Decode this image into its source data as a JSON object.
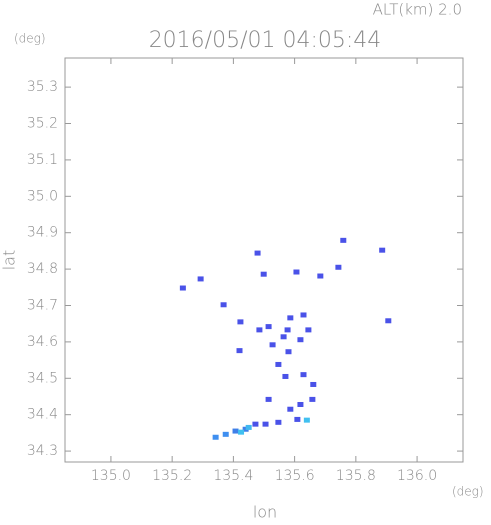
{
  "chart_data": {
    "type": "scatter",
    "title": "2016/05/01 04:05:44",
    "subtitle": "ALT(km) 2.0",
    "x_label": "lon",
    "y_label": "lat",
    "x_unit": "(deg)",
    "y_unit": "(deg)",
    "xlim": [
      134.85,
      136.15
    ],
    "ylim": [
      34.27,
      35.38
    ],
    "xticks": [
      {
        "value": 135.0,
        "label": "135.0"
      },
      135.2,
      135.4,
      135.6,
      135.8,
      {
        "value": 136.0,
        "label": "136.0"
      }
    ],
    "yticks": [
      35.3,
      35.2,
      35.1,
      {
        "value": 35.0,
        "label": "35.0"
      },
      34.9,
      34.8,
      34.7,
      34.6,
      34.5,
      34.4,
      34.3
    ],
    "x": [
      135.235,
      135.293,
      135.368,
      135.479,
      135.499,
      135.606,
      135.684,
      135.759,
      135.743,
      135.886,
      135.906,
      135.423,
      135.42,
      135.485,
      135.515,
      135.528,
      135.564,
      135.58,
      135.577,
      135.629,
      135.645,
      135.586,
      135.619,
      135.547,
      135.57,
      135.629,
      135.661,
      135.658,
      135.619,
      135.586,
      135.515,
      135.505,
      135.472,
      135.44,
      135.407,
      135.375,
      135.342,
      135.547,
      135.609,
      135.425,
      135.45,
      135.64
    ],
    "y": [
      34.748,
      34.773,
      34.702,
      34.844,
      34.786,
      34.792,
      34.781,
      34.879,
      34.805,
      34.852,
      34.658,
      34.655,
      34.576,
      34.633,
      34.642,
      34.592,
      34.614,
      34.573,
      34.633,
      34.674,
      34.633,
      34.666,
      34.606,
      34.538,
      34.505,
      34.51,
      34.483,
      34.442,
      34.428,
      34.415,
      34.442,
      34.374,
      34.374,
      34.36,
      34.355,
      34.346,
      34.338,
      34.379,
      34.387,
      34.352,
      34.365,
      34.385
    ],
    "colors": [
      "#4a52e8",
      "#4a52e8",
      "#4a52e8",
      "#4a52e8",
      "#4a52e8",
      "#4a52e8",
      "#4a52e8",
      "#4a52e8",
      "#4a52e8",
      "#4a52e8",
      "#4a52e8",
      "#4a52e8",
      "#4a52e8",
      "#4a52e8",
      "#4a52e8",
      "#4a52e8",
      "#4a52e8",
      "#4a52e8",
      "#4a52e8",
      "#4a52e8",
      "#4a52e8",
      "#4a52e8",
      "#4a52e8",
      "#4a52e8",
      "#4a52e8",
      "#4a52e8",
      "#4a52e8",
      "#4a52e8",
      "#4a52e8",
      "#4a52e8",
      "#4a52e8",
      "#4a52e8",
      "#4a52e8",
      "#3f7fe8",
      "#3f7fe8",
      "#3f8ff0",
      "#3f8ff0",
      "#4a52e8",
      "#4a52e8",
      "#40c0f0",
      "#40b8f0",
      "#40c0f0"
    ]
  }
}
